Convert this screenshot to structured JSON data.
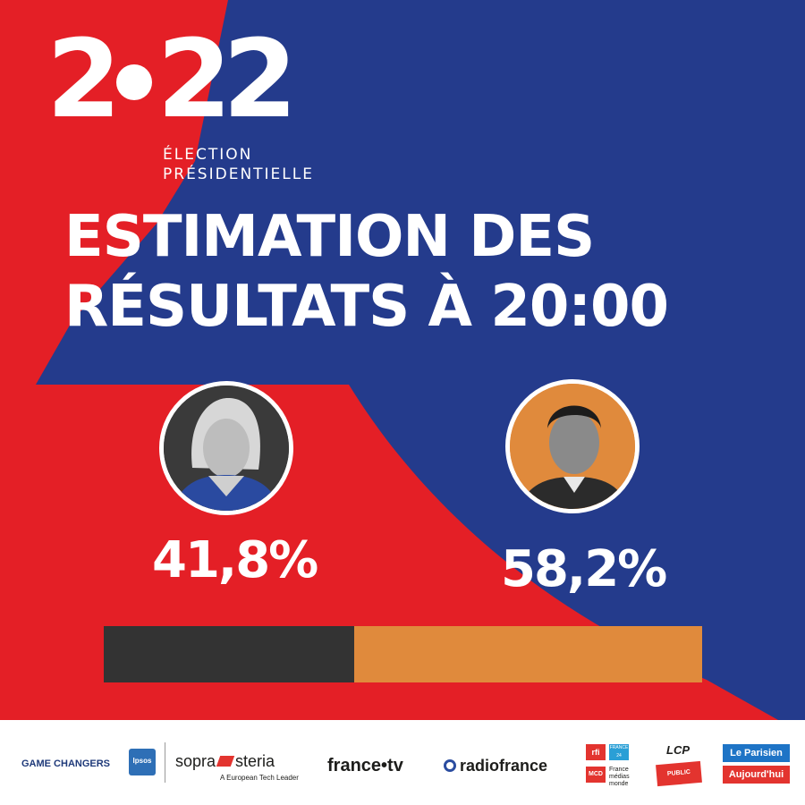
{
  "logo": {
    "year_left": "2",
    "year_right": "22",
    "line1": "ÉLECTION",
    "line2": "PRÉSIDENTIELLE"
  },
  "headline": {
    "line1": "ESTIMATION DES",
    "line2": "RÉSULTATS À 20:00"
  },
  "chart_data": {
    "type": "bar",
    "stacked": true,
    "title": "ESTIMATION DES RÉSULTATS À 20:00",
    "series": [
      {
        "value": 41.8,
        "label": "41,8%",
        "color": "#333333"
      },
      {
        "value": 58.2,
        "label": "58,2%",
        "color": "#e08a3c"
      }
    ],
    "total": 100
  },
  "colors": {
    "red": "#e41f26",
    "blue": "#243b8c",
    "portrait_left_bg": "#3a3a3a",
    "portrait_right_bg": "#e08a3c"
  },
  "sponsors": {
    "ipsos_tagline": "GAME CHANGERS",
    "ipsos_logo": "Ipsos",
    "sopra_left": "sopra",
    "sopra_right": "steria",
    "sopra_tagline": "A European Tech Leader",
    "francetv": "france•tv",
    "radiofrance": "radiofrance",
    "rfi": "rfi",
    "france24": "FRANCE 24",
    "mcd": "MCD",
    "fmm": "France médias monde",
    "lcp": "LCP",
    "public_senat": "PUBLIC SÉNAT",
    "leparisien": "Le Parisien",
    "aujourdhui": "Aujourd'hui"
  }
}
